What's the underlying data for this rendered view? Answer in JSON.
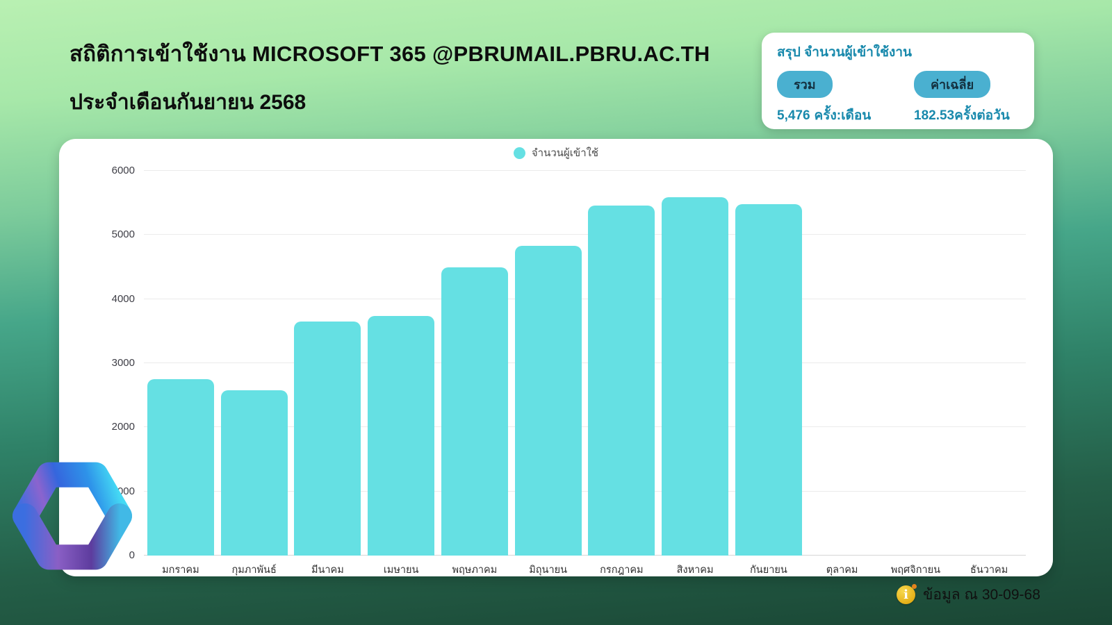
{
  "page": {
    "title_line1": "สถิติการเข้าใช้งาน MICROSOFT 365 @PBRUMAIL.PBRU.AC.TH",
    "title_line2": "ประจำเดือนกันยายน 2568",
    "footer_note": "ข้อมูล ณ 30-09-68"
  },
  "summary": {
    "title": "สรุป จำนวนผู้เข้าใช้งาน",
    "total_label": "รวม",
    "total_value": "5,476",
    "total_unit": "ครั้ง:เดือน",
    "average_label": "ค่าเฉลี่ย",
    "average_value": "182.53",
    "average_unit": "ครั้งต่อวัน"
  },
  "chart_data": {
    "type": "bar",
    "title": "",
    "legend": [
      "จำนวนผู้เข้าใช้"
    ],
    "legend_position": "top-center",
    "categories": [
      "มกราคม",
      "กุมภาพันธ์",
      "มีนาคม",
      "เมษายน",
      "พฤษภาคม",
      "มิถุนายน",
      "กรกฎาคม",
      "สิงหาคม",
      "กันยายน",
      "ตุลาคม",
      "พฤศจิกายน",
      "ธันวาคม"
    ],
    "values": [
      2750,
      2580,
      3650,
      3740,
      4500,
      4830,
      5460,
      5590,
      5476,
      0,
      0,
      0
    ],
    "xlabel": "",
    "ylabel": "",
    "ylim": [
      0,
      6000
    ],
    "ytick_step": 1000,
    "grid": true,
    "bar_color": "#65e0e3"
  },
  "colors": {
    "accent_teal": "#1889ac",
    "pill_bg": "#4ab0d0",
    "bar": "#65e0e3",
    "bg_top": "#b9f0b2",
    "bg_bottom": "#1a4634",
    "info_icon_gold": "#e3ad15"
  }
}
